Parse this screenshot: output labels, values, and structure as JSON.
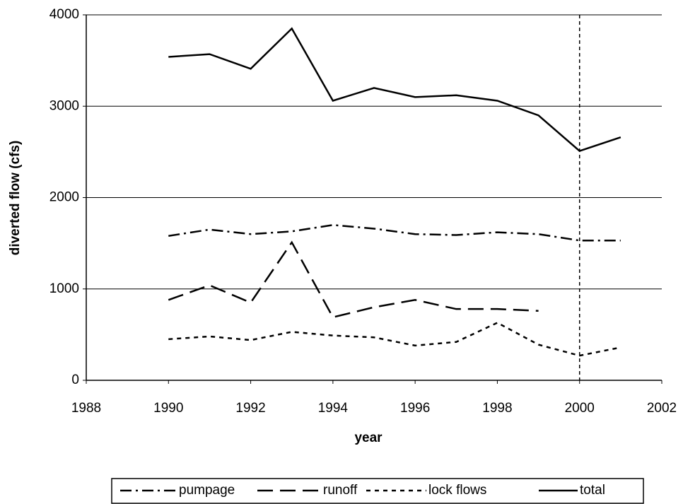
{
  "chart_data": {
    "type": "line",
    "x_label": "year",
    "y_label": "diverted flow (cfs)",
    "x": [
      1990,
      1991,
      1992,
      1993,
      1994,
      1995,
      1996,
      1997,
      1998,
      1999,
      2000,
      2001
    ],
    "series": [
      {
        "name": "pumpage",
        "color": "#000000",
        "values": [
          1580,
          1650,
          1600,
          1630,
          1700,
          1660,
          1600,
          1590,
          1620,
          1600,
          1530,
          1530
        ]
      },
      {
        "name": "runoff",
        "color": "#000000",
        "values": [
          880,
          1040,
          850,
          1510,
          690,
          800,
          880,
          780,
          780,
          760,
          null,
          null
        ]
      },
      {
        "name": "lock flows",
        "color": "#000000",
        "values": [
          450,
          480,
          440,
          530,
          490,
          470,
          380,
          420,
          630,
          390,
          270,
          360
        ]
      },
      {
        "name": "total",
        "color": "#000000",
        "values": [
          3540,
          3570,
          3410,
          3850,
          3060,
          3200,
          3100,
          3120,
          3060,
          2900,
          2510,
          2660
        ]
      }
    ],
    "xlim": [
      1988,
      2002
    ],
    "xticks": [
      1988,
      1990,
      1992,
      1994,
      1996,
      1998,
      2000,
      2002
    ],
    "ylim": [
      0,
      4000
    ],
    "yticks": [
      0,
      1000,
      2000,
      3000,
      4000
    ],
    "vline": 2000,
    "grid": true,
    "legend": "bottom"
  }
}
